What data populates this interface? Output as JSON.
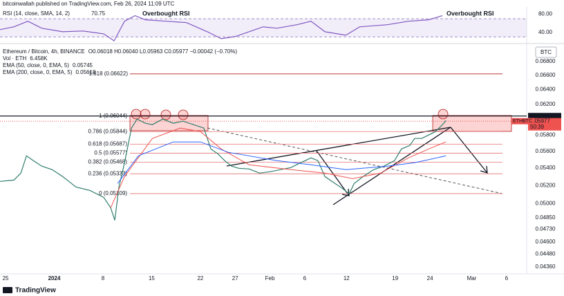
{
  "header": {
    "author": "bitcoinwallah published on TradingView.com, Feb 26, 2024 11:09 UTC"
  },
  "footer": {
    "brand": "TradingView"
  },
  "currency": "BTC",
  "chart_data": [
    {
      "type": "line",
      "panel": "rsi",
      "annotations": [
        "Overbought RSI",
        "Overbought RSI"
      ],
      "xlim": [
        -0.8,
        74.9
      ],
      "ylim": [
        20,
        96
      ],
      "yticks": [
        {
          "value": 80,
          "label": "80.00"
        },
        {
          "value": 40,
          "label": "40.00"
        }
      ],
      "bands": [
        30,
        70
      ],
      "series": [
        {
          "name": "RSI (14, close, SMA, 14, 2)",
          "last_label": "70.75",
          "color": "#7e57c2",
          "x": [
            -0.8,
            1.2,
            3.2,
            5.2,
            8.2,
            11.1,
            14.1,
            15.6,
            17.1,
            18.6,
            20.1,
            23.1,
            26.0,
            29.0,
            31.0,
            33.0,
            37.0,
            39.0,
            41.9,
            43.9,
            45.9,
            48.9,
            50.9,
            54.9,
            57.9,
            60.8,
            62.8
          ],
          "values": [
            46.2,
            52.3,
            64.6,
            49.2,
            41.5,
            43.1,
            36.9,
            21.5,
            64.6,
            76.9,
            67.7,
            64.6,
            61.5,
            41.5,
            26.2,
            30.8,
            52.3,
            49.2,
            56.9,
            64.6,
            41.5,
            33.8,
            52.3,
            56.9,
            64.6,
            67.7,
            76.9
          ]
        }
      ]
    },
    {
      "type": "line",
      "panel": "price",
      "log": true,
      "ohlc": "O0.06018 H0.06040 L0.05963 C0.05977 −0.00042 (−0.70%)",
      "volume": {
        "label": "Vol · ETH",
        "value": "6.458K"
      },
      "xlim": [
        -0.8,
        74.9
      ],
      "ylim": [
        0.043,
        0.0705
      ],
      "xticks": [
        {
          "value": 0,
          "label": "25"
        },
        {
          "value": 7,
          "label": "2024"
        },
        {
          "value": 14,
          "label": "8"
        },
        {
          "value": 21,
          "label": "15"
        },
        {
          "value": 28,
          "label": "22"
        },
        {
          "value": 33,
          "label": "27"
        },
        {
          "value": 38,
          "label": "Feb"
        },
        {
          "value": 43,
          "label": "6"
        },
        {
          "value": 49,
          "label": "12"
        },
        {
          "value": 56,
          "label": "19"
        },
        {
          "value": 61,
          "label": "24"
        },
        {
          "value": 67,
          "label": "Mar"
        },
        {
          "value": 72,
          "label": "6"
        }
      ],
      "yticks": [
        {
          "value": 0.068,
          "label": "0.06800"
        },
        {
          "value": 0.066,
          "label": "0.06600"
        },
        {
          "value": 0.064,
          "label": "0.06400"
        },
        {
          "value": 0.062,
          "label": "0.06200"
        },
        {
          "value": 0.058,
          "label": "0.05800"
        },
        {
          "value": 0.056,
          "label": "0.05600"
        },
        {
          "value": 0.054,
          "label": "0.05400"
        },
        {
          "value": 0.052,
          "label": "0.05200"
        },
        {
          "value": 0.05,
          "label": "0.05000"
        },
        {
          "value": 0.0485,
          "label": "0.04850"
        },
        {
          "value": 0.0473,
          "label": "0.04730"
        },
        {
          "value": 0.046,
          "label": "0.04600"
        },
        {
          "value": 0.0448,
          "label": "0.04480"
        },
        {
          "value": 0.0436,
          "label": "0.04360"
        }
      ],
      "levels": [
        {
          "value": 0.06622,
          "label": "1.618 (0.06622)"
        },
        {
          "value": 0.06044,
          "label": "1 (0.06044)"
        },
        {
          "value": 0.05844,
          "label": "0.786 (0.05844)"
        },
        {
          "value": 0.05687,
          "label": "0.618 (0.05687)"
        },
        {
          "value": 0.05577,
          "label": "0.5 (0.05577)"
        },
        {
          "value": 0.05468,
          "label": "0.382 (0.05468)"
        },
        {
          "value": 0.05333,
          "label": "0.236 (0.05333)"
        },
        {
          "value": 0.05109,
          "label": "0 (0.05109)"
        }
      ],
      "price_tags": [
        {
          "value": 0.06044,
          "color": "#131722"
        },
        {
          "value": 0.05977,
          "color": "#ef5350",
          "countdown": "50:39",
          "symbol": "ETHBTC"
        }
      ],
      "series": [
        {
          "name": "Ethereum / Bitcoin, 4h, BINANCE",
          "color": "#2f7d6d",
          "x": [
            -0.8,
            1.2,
            2.2,
            3.0,
            3.7,
            5.2,
            6.7,
            8.2,
            9.1,
            10.1,
            12.1,
            14.1,
            15.1,
            15.7,
            16.3,
            17.1,
            18.1,
            18.9,
            20.1,
            21.1,
            22.6,
            24.1,
            25.5,
            27.0,
            28.5,
            29.5,
            30.5,
            31.5,
            32.5,
            33.5,
            35.0,
            36.5,
            38.0,
            39.5,
            41.0,
            42.4,
            43.9,
            44.9,
            45.9,
            46.9,
            48.4,
            49.4,
            50.1,
            51.4,
            52.9,
            54.4,
            55.9,
            56.9,
            58.1,
            58.8,
            59.8,
            60.8,
            61.8,
            62.8,
            63.3
          ],
          "values": [
            0.05246,
            0.05261,
            0.05341,
            0.05545,
            0.05504,
            0.05422,
            0.05381,
            0.05301,
            0.05246,
            0.05183,
            0.05145,
            0.05068,
            0.04955,
            0.04823,
            0.05183,
            0.05462,
            0.05888,
            0.06004,
            0.0595,
            0.05932,
            0.06004,
            0.0595,
            0.05977,
            0.05932,
            0.05888,
            0.05628,
            0.0557,
            0.05487,
            0.05422,
            0.05397,
            0.05389,
            0.05341,
            0.05357,
            0.05381,
            0.05405,
            0.05462,
            0.0552,
            0.05487,
            0.05301,
            0.05246,
            0.05168,
            0.05106,
            0.05222,
            0.05301,
            0.05381,
            0.05422,
            0.05487,
            0.05628,
            0.05671,
            0.05757,
            0.05757,
            0.058,
            0.05844,
            0.05932,
            0.05986
          ]
        },
        {
          "name": "EMA (50, close, 0, EMA, 5)",
          "last_label": "0.05745",
          "color": "#ef5350",
          "x": [
            15.1,
            17.1,
            21.1,
            25.1,
            28.0,
            31.0,
            35.0,
            41.0,
            45.9,
            49.9,
            53.9,
            57.9,
            60.8,
            63.3
          ],
          "values": [
            0.04955,
            0.05301,
            0.05757,
            0.05888,
            0.05844,
            0.05628,
            0.05438,
            0.05381,
            0.05341,
            0.05277,
            0.05341,
            0.0552,
            0.05628,
            0.05714
          ]
        },
        {
          "name": "EMA (200, close, 0, EMA, 5)",
          "last_label": "0.05618",
          "color": "#2962ff",
          "x": [
            16.1,
            19.1,
            24.1,
            28.0,
            32.0,
            39.0,
            43.9,
            48.9,
            54.9,
            58.8,
            63.3
          ],
          "values": [
            0.05222,
            0.05545,
            0.05714,
            0.05714,
            0.05587,
            0.05487,
            0.05438,
            0.05381,
            0.05422,
            0.05462,
            0.05545
          ]
        }
      ]
    }
  ]
}
